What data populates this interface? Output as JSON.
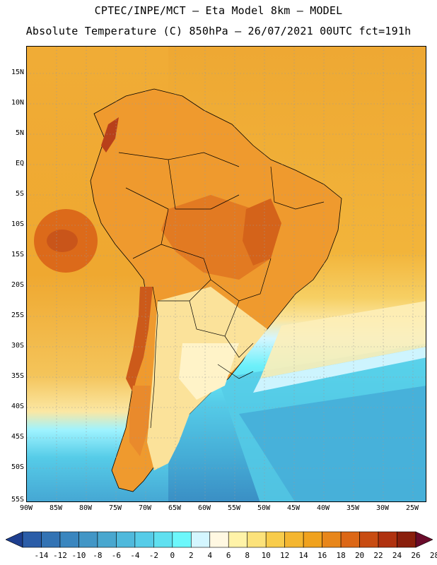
{
  "header": {
    "line1": "CPTEC/INPE/MCT –  Eta Model 8km – MODEL",
    "line2": "Absolute Temperature (C) 850hPa – 26/07/2021 00UTC fct=191h"
  },
  "axes": {
    "lat_labels": [
      "15N",
      "10N",
      "5N",
      "EQ",
      "5S",
      "10S",
      "15S",
      "20S",
      "25S",
      "30S",
      "35S",
      "40S",
      "45S",
      "50S",
      "55S"
    ],
    "lon_labels": [
      "90W",
      "85W",
      "80W",
      "75W",
      "70W",
      "65W",
      "60W",
      "55W",
      "50W",
      "45W",
      "40W",
      "35W",
      "30W",
      "25W"
    ]
  },
  "colorbar": {
    "labels": [
      "-14",
      "-12",
      "-10",
      "-8",
      "-6",
      "-4",
      "-2",
      "0",
      "2",
      "4",
      "6",
      "8",
      "10",
      "12",
      "14",
      "16",
      "18",
      "20",
      "22",
      "24",
      "26",
      "28"
    ],
    "colors": [
      "#1e3f8f",
      "#2b5da8",
      "#3373b4",
      "#3a86bf",
      "#4296c6",
      "#49a7cf",
      "#4fb9dc",
      "#56cce8",
      "#5fe0f0",
      "#6cf7fb",
      "#d4f6ff",
      "#fff8e2",
      "#fff3a8",
      "#fce27a",
      "#f8cc4b",
      "#f4b630",
      "#f0a21e",
      "#e8861a",
      "#dc6716",
      "#c84c12",
      "#b0320f",
      "#8a1f0c",
      "#6a0b2a"
    ],
    "colors_note_low": "#1e3f8f",
    "colors_note_high": "#6a0b2a"
  },
  "map": {
    "ocean_top_color": "#f2b43a",
    "ocean_mid_color": "#f7d878",
    "ocean_cold_color": "#45bfe0",
    "ocean_far_south_color": "#4a9fcf",
    "land_hot_color": "#e88a2c",
    "land_core_color": "#d46a1c",
    "land_south_color": "#fbe39a",
    "patagonia_color": "#f3c670"
  }
}
